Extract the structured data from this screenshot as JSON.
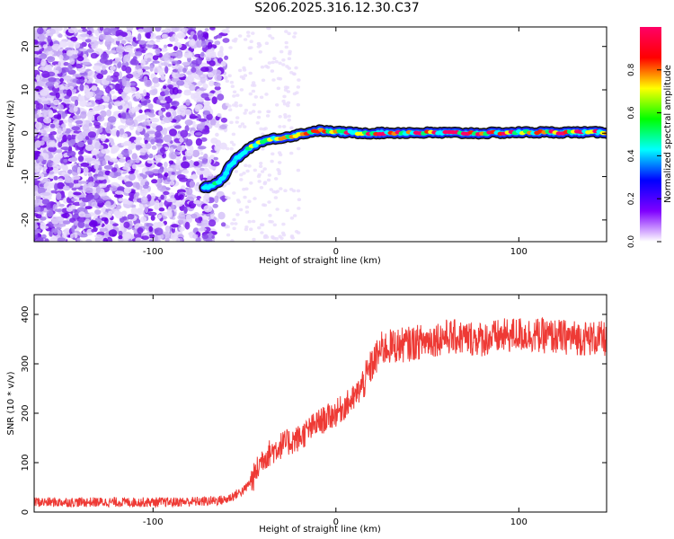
{
  "title": "S206.2025.316.12.30.C37",
  "chart_data": [
    {
      "type": "heatmap",
      "xlabel": "Height of straight line (km)",
      "ylabel": "Frequency (Hz)",
      "xlim": [
        -165,
        148
      ],
      "ylim": [
        -25,
        24.5
      ],
      "x_ticks": [
        -100,
        0,
        100
      ],
      "y_ticks": [
        -20,
        -10,
        0,
        10,
        20
      ],
      "colorbar": {
        "label": "Normalized spectral amplitude",
        "range": [
          0,
          1
        ],
        "ticks": [
          0.0,
          0.2,
          0.4,
          0.6,
          0.8
        ],
        "colors": [
          "#ffffff",
          "#7f00ff",
          "#0000ff",
          "#00ffff",
          "#00ff00",
          "#ffff00",
          "#ff0000",
          "#ff0066"
        ]
      },
      "ridge": {
        "x": [
          -72,
          -68,
          -62,
          -57,
          -52,
          -46,
          -40,
          -34,
          -26,
          -18,
          -10,
          0,
          10,
          20,
          30,
          40,
          60,
          80,
          100,
          120,
          148
        ],
        "y": [
          -12.5,
          -12.3,
          -10.5,
          -7,
          -5,
          -3,
          -1.8,
          -1.3,
          -0.8,
          -0.1,
          0.6,
          0.3,
          0.1,
          0,
          0.1,
          0.1,
          0.1,
          0,
          0.2,
          0.2,
          0.2
        ]
      }
    },
    {
      "type": "line",
      "xlabel": "Height of straight line (km)",
      "ylabel": "SNR (10 * v/v)",
      "xlim": [
        -165,
        148
      ],
      "ylim": [
        0,
        440
      ],
      "x_ticks": [
        -100,
        0,
        100
      ],
      "y_ticks": [
        0,
        100,
        200,
        300,
        400
      ],
      "series": [
        {
          "name": "SNR",
          "color": "#ee3a35",
          "x": [
            -165,
            -150,
            -120,
            -90,
            -70,
            -60,
            -55,
            -50,
            -45,
            -40,
            -30,
            -20,
            -10,
            0,
            10,
            15,
            20,
            25,
            30,
            40,
            60,
            80,
            100,
            120,
            148
          ],
          "y": [
            20,
            20,
            20,
            20,
            22,
            25,
            35,
            45,
            70,
            110,
            135,
            150,
            180,
            200,
            230,
            260,
            300,
            330,
            335,
            340,
            355,
            350,
            360,
            355,
            350
          ]
        }
      ]
    }
  ]
}
